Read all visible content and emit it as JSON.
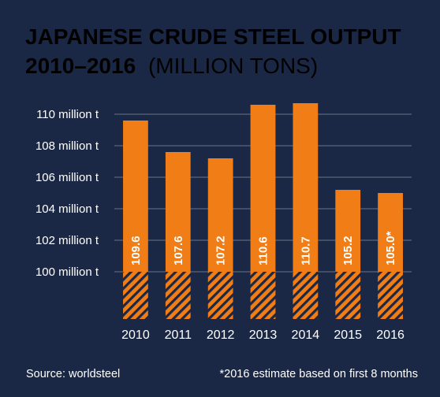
{
  "chart_data": {
    "type": "bar",
    "title": "JAPANESE CRUDE STEEL OUTPUT",
    "title_line2": "2010–2016",
    "subtitle": "(MILLION TONS)",
    "categories": [
      "2010",
      "2011",
      "2012",
      "2013",
      "2014",
      "2015",
      "2016"
    ],
    "values": [
      109.6,
      107.6,
      107.2,
      110.6,
      110.7,
      105.2,
      105.0
    ],
    "data_labels": [
      "109.6",
      "107.6",
      "107.2",
      "110.6",
      "110.7",
      "105.2",
      "105.0*"
    ],
    "yticks": [
      100,
      102,
      104,
      106,
      108,
      110
    ],
    "ytick_labels": [
      "100 million t",
      "102 million t",
      "104 million t",
      "106 million t",
      "108 million t",
      "110 million t"
    ],
    "ylim": [
      97,
      111.5
    ],
    "grid": true,
    "xlabel": "",
    "ylabel": "",
    "colors": {
      "background": "#1b2845",
      "bar": "#f07d15",
      "hatch": "#1b2845",
      "grid": "#ffffff"
    }
  },
  "footer": {
    "source": "Source: worldsteel",
    "note": "*2016 estimate based on first 8 months"
  }
}
